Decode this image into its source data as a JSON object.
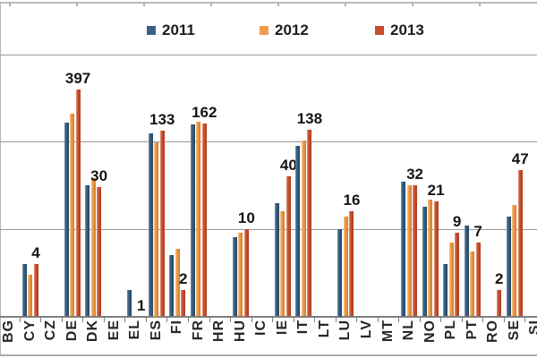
{
  "legend": {
    "items": [
      {
        "label": "2011",
        "color": "#3a6182"
      },
      {
        "label": "2012",
        "color": "#ec9d4e"
      },
      {
        "label": "2013",
        "color": "#c54c2c"
      }
    ]
  },
  "chart_data": {
    "type": "bar",
    "scale": "log",
    "ylim": [
      1,
      1000
    ],
    "gridline_values": [
      10,
      100,
      1000
    ],
    "legend_position": "top",
    "categories": [
      "BG",
      "CY",
      "CZ",
      "DE",
      "DK",
      "EE",
      "EL",
      "ES",
      "FI",
      "FR",
      "HR",
      "HU",
      "IC",
      "IE",
      "IT",
      "LT",
      "LU",
      "LV",
      "MT",
      "NL",
      "NO",
      "PL",
      "PT",
      "RO",
      "SE",
      "SI"
    ],
    "series": [
      {
        "name": "2011",
        "color": "#3a6182",
        "values": [
          null,
          4,
          null,
          165,
          32,
          null,
          2,
          125,
          5,
          158,
          null,
          8,
          null,
          20,
          90,
          null,
          10,
          null,
          null,
          35,
          18,
          4,
          11,
          null,
          14,
          null
        ]
      },
      {
        "name": "2012",
        "color": "#ec9d4e",
        "values": [
          null,
          3,
          null,
          210,
          38,
          null,
          null,
          100,
          6,
          172,
          null,
          9,
          null,
          16,
          104,
          null,
          14,
          null,
          null,
          32,
          22,
          7,
          5.5,
          null,
          19,
          null
        ]
      },
      {
        "name": "2013",
        "color": "#c54c2c",
        "values": [
          null,
          4,
          null,
          397,
          30,
          null,
          1,
          133,
          2,
          162,
          null,
          10,
          null,
          40,
          138,
          null,
          16,
          null,
          null,
          32,
          21,
          9,
          7,
          2,
          47,
          null
        ]
      }
    ],
    "data_labels_series": "2013",
    "data_labels": [
      "",
      "4",
      "",
      "397",
      "30",
      "",
      "1",
      "133",
      "2",
      "162",
      "",
      "10",
      "",
      "40",
      "138",
      "",
      "16",
      "",
      "",
      "32",
      "21",
      "9",
      "7",
      "2",
      "47",
      ""
    ]
  }
}
